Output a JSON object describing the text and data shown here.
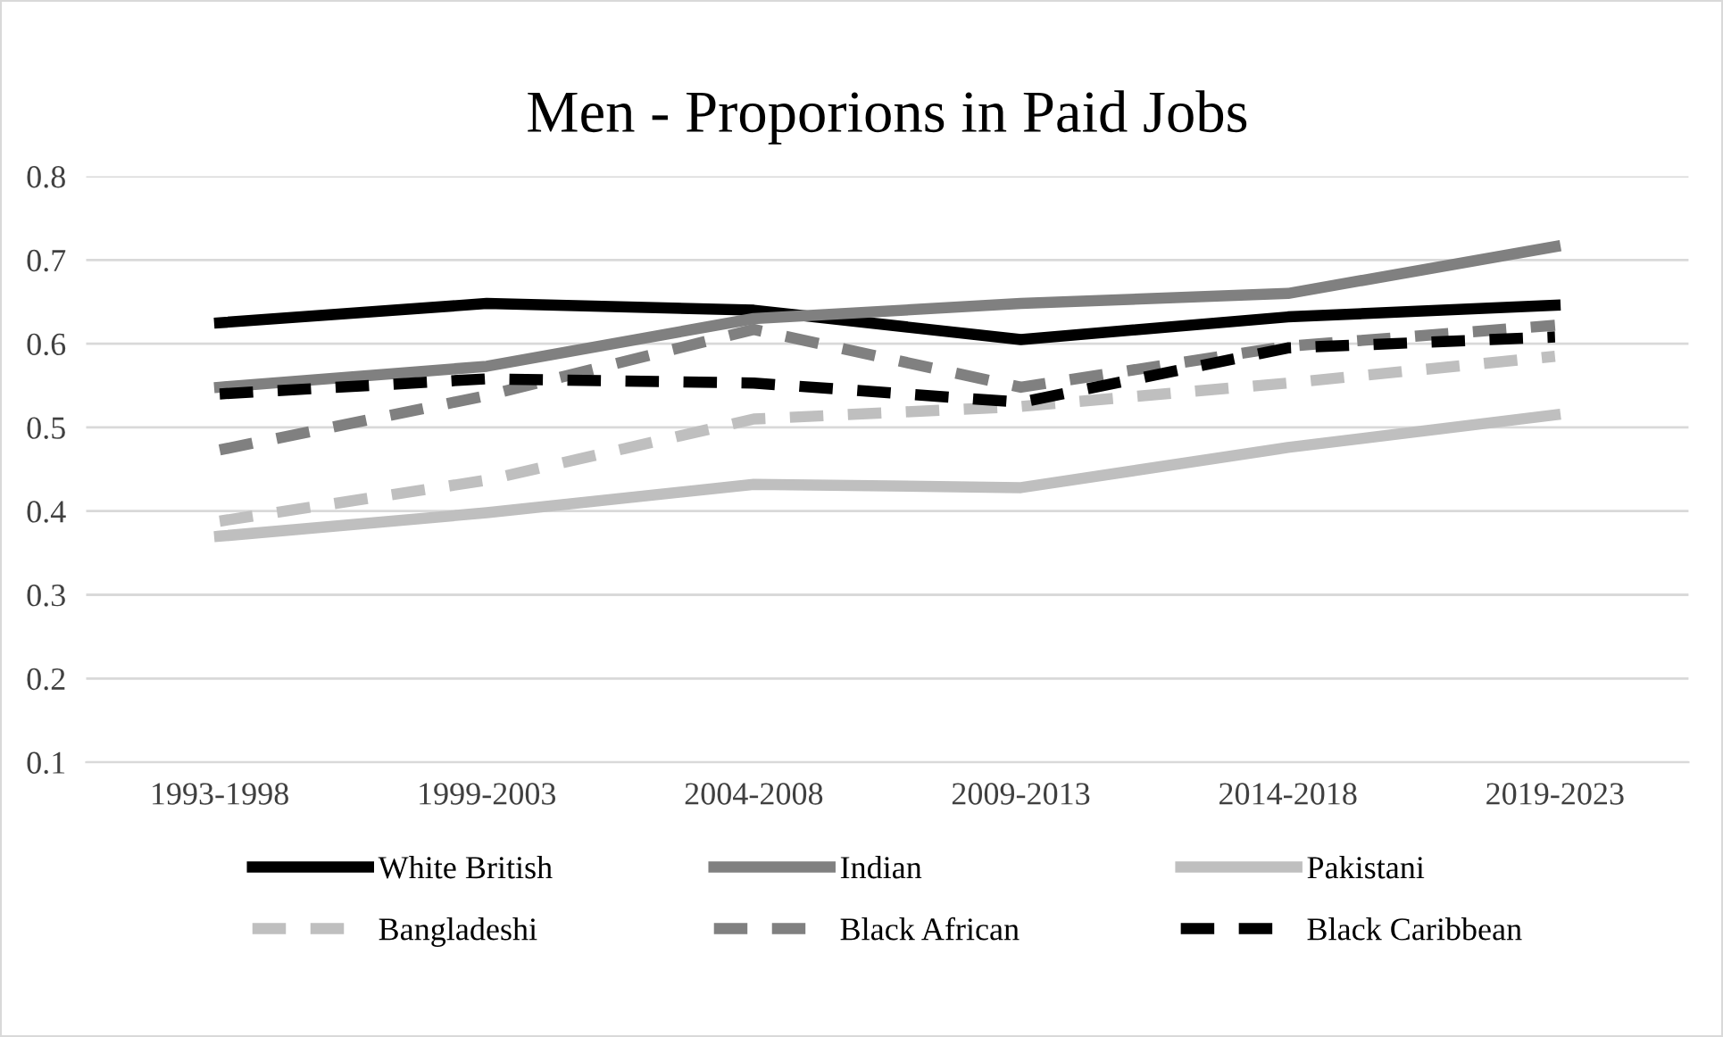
{
  "chart_data": {
    "type": "line",
    "title": "Men - Proporions in Paid Jobs",
    "categories": [
      "1993-1998",
      "1999-2003",
      "2004-2008",
      "2009-2013",
      "2014-2018",
      "2019-2023"
    ],
    "series": [
      {
        "name": "White British",
        "color": "#000000",
        "line_style": "solid",
        "values": [
          0.625,
          0.648,
          0.64,
          0.605,
          0.632,
          0.646
        ]
      },
      {
        "name": "Indian",
        "color": "#808080",
        "line_style": "solid",
        "values": [
          0.548,
          0.573,
          0.63,
          0.648,
          0.66,
          0.716
        ]
      },
      {
        "name": "Pakistani",
        "color": "#bfbfbf",
        "line_style": "solid",
        "values": [
          0.37,
          0.398,
          0.432,
          0.428,
          0.476,
          0.515
        ]
      },
      {
        "name": "Bangladeshi",
        "color": "#bfbfbf",
        "line_style": "dashed",
        "values": [
          0.388,
          0.437,
          0.51,
          0.525,
          0.553,
          0.585
        ]
      },
      {
        "name": "Black African",
        "color": "#808080",
        "line_style": "dashed",
        "values": [
          0.473,
          0.538,
          0.617,
          0.548,
          0.597,
          0.622
        ]
      },
      {
        "name": "Black Caribbean",
        "color": "#000000",
        "line_style": "dashed",
        "values": [
          0.54,
          0.558,
          0.553,
          0.53,
          0.595,
          0.608
        ]
      }
    ],
    "ylim": [
      0.1,
      0.8
    ],
    "yticks": [
      0.1,
      0.2,
      0.3,
      0.4,
      0.5,
      0.6,
      0.7,
      0.8
    ],
    "grid": "y",
    "legend": "bottom",
    "marker": "none"
  }
}
